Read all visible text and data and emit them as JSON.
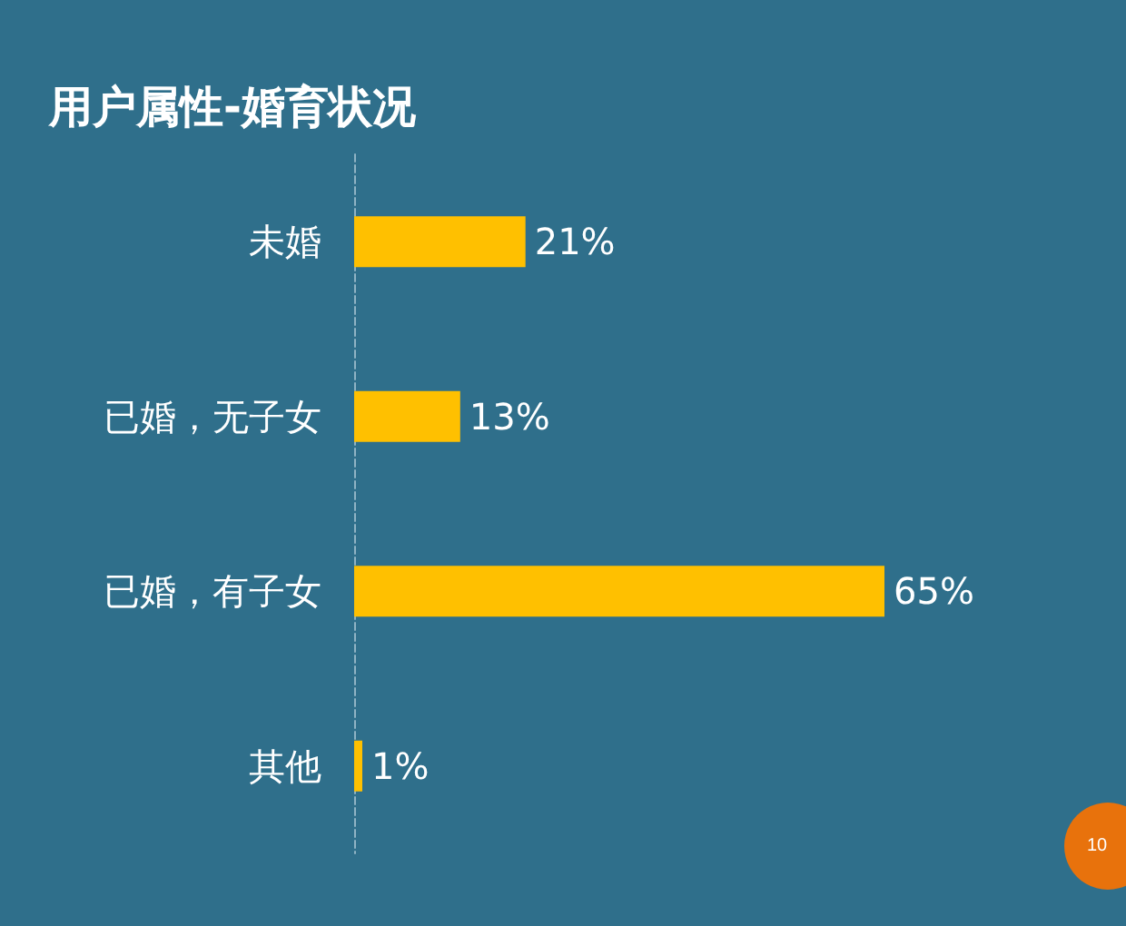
{
  "chart_data": {
    "type": "bar",
    "orientation": "horizontal",
    "title": "用户属性-婚育状况",
    "categories": [
      "未婚",
      "已婚，无子女",
      "已婚，有子女",
      "其他"
    ],
    "values": [
      21,
      13,
      65,
      1
    ],
    "value_labels": [
      "21%",
      "13%",
      "65%",
      "1%"
    ],
    "color": "#ffc000",
    "tick_labels": "y",
    "annotations": [
      "10"
    ]
  }
}
